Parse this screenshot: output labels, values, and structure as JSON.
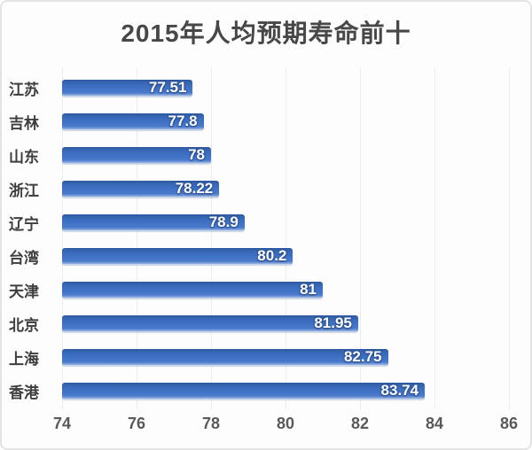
{
  "chart_data": {
    "type": "bar",
    "orientation": "horizontal",
    "title": "2015年人均预期寿命前十",
    "categories": [
      "江苏",
      "吉林",
      "山东",
      "浙江",
      "辽宁",
      "台湾",
      "天津",
      "北京",
      "上海",
      "香港"
    ],
    "values": [
      77.51,
      77.8,
      78,
      78.22,
      78.9,
      80.2,
      81,
      81.95,
      82.75,
      83.74
    ],
    "value_labels": [
      "77.51",
      "77.8",
      "78",
      "78.22",
      "78.9",
      "80.2",
      "81",
      "81.95",
      "82.75",
      "83.74"
    ],
    "xlabel": "",
    "ylabel": "",
    "xlim": [
      74,
      86
    ],
    "x_ticks": [
      74,
      76,
      78,
      80,
      82,
      84,
      86
    ],
    "grid": true,
    "legend": "none",
    "colors": {
      "bar": "#3f70c4",
      "bar_value_text": "#ffffff",
      "title_text": "#474747",
      "category_text": "#3d3d3d",
      "axis_text": "#595959",
      "gridline": "#ececec",
      "card_background": "#fdfdfd",
      "card_border": "#e3e3e3"
    }
  }
}
